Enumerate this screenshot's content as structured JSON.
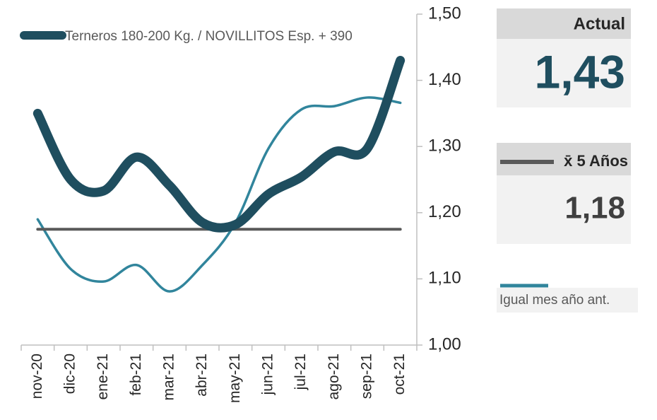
{
  "chart_data": {
    "type": "line",
    "categories": [
      "nov-20",
      "dic-20",
      "ene-21",
      "feb-21",
      "mar-21",
      "abr-21",
      "may-21",
      "jun-21",
      "jul-21",
      "ago-21",
      "sep-21",
      "oct-21"
    ],
    "series": [
      {
        "name": "Terneros 180-200 Kg. / NOVILLITOS Esp. + 390",
        "color": "#1f4e5f",
        "values": [
          1.35,
          1.25,
          1.233,
          1.284,
          1.241,
          1.185,
          1.182,
          1.228,
          1.254,
          1.292,
          1.297,
          1.43
        ]
      },
      {
        "name": "x̄ 5 Años",
        "color": "#595959",
        "values": [
          1.175,
          1.175,
          1.175,
          1.175,
          1.175,
          1.175,
          1.175,
          1.175,
          1.175,
          1.175,
          1.175,
          1.175
        ]
      },
      {
        "name": "Igual mes año ant.",
        "color": "#31859c",
        "values": [
          1.19,
          1.115,
          1.096,
          1.121,
          1.081,
          1.121,
          1.185,
          1.297,
          1.356,
          1.361,
          1.374,
          1.366
        ]
      }
    ],
    "ylim": [
      1.0,
      1.5
    ],
    "yticks": [
      {
        "value": 1.0,
        "label": "1,00"
      },
      {
        "value": 1.1,
        "label": "1,10"
      },
      {
        "value": 1.2,
        "label": "1,20"
      },
      {
        "value": 1.3,
        "label": "1,30"
      },
      {
        "value": 1.4,
        "label": "1,40"
      },
      {
        "value": 1.5,
        "label": "1,50"
      }
    ],
    "panels": {
      "actual_title": "Actual",
      "actual_value": "1,43",
      "avg_value": "1,18"
    }
  }
}
